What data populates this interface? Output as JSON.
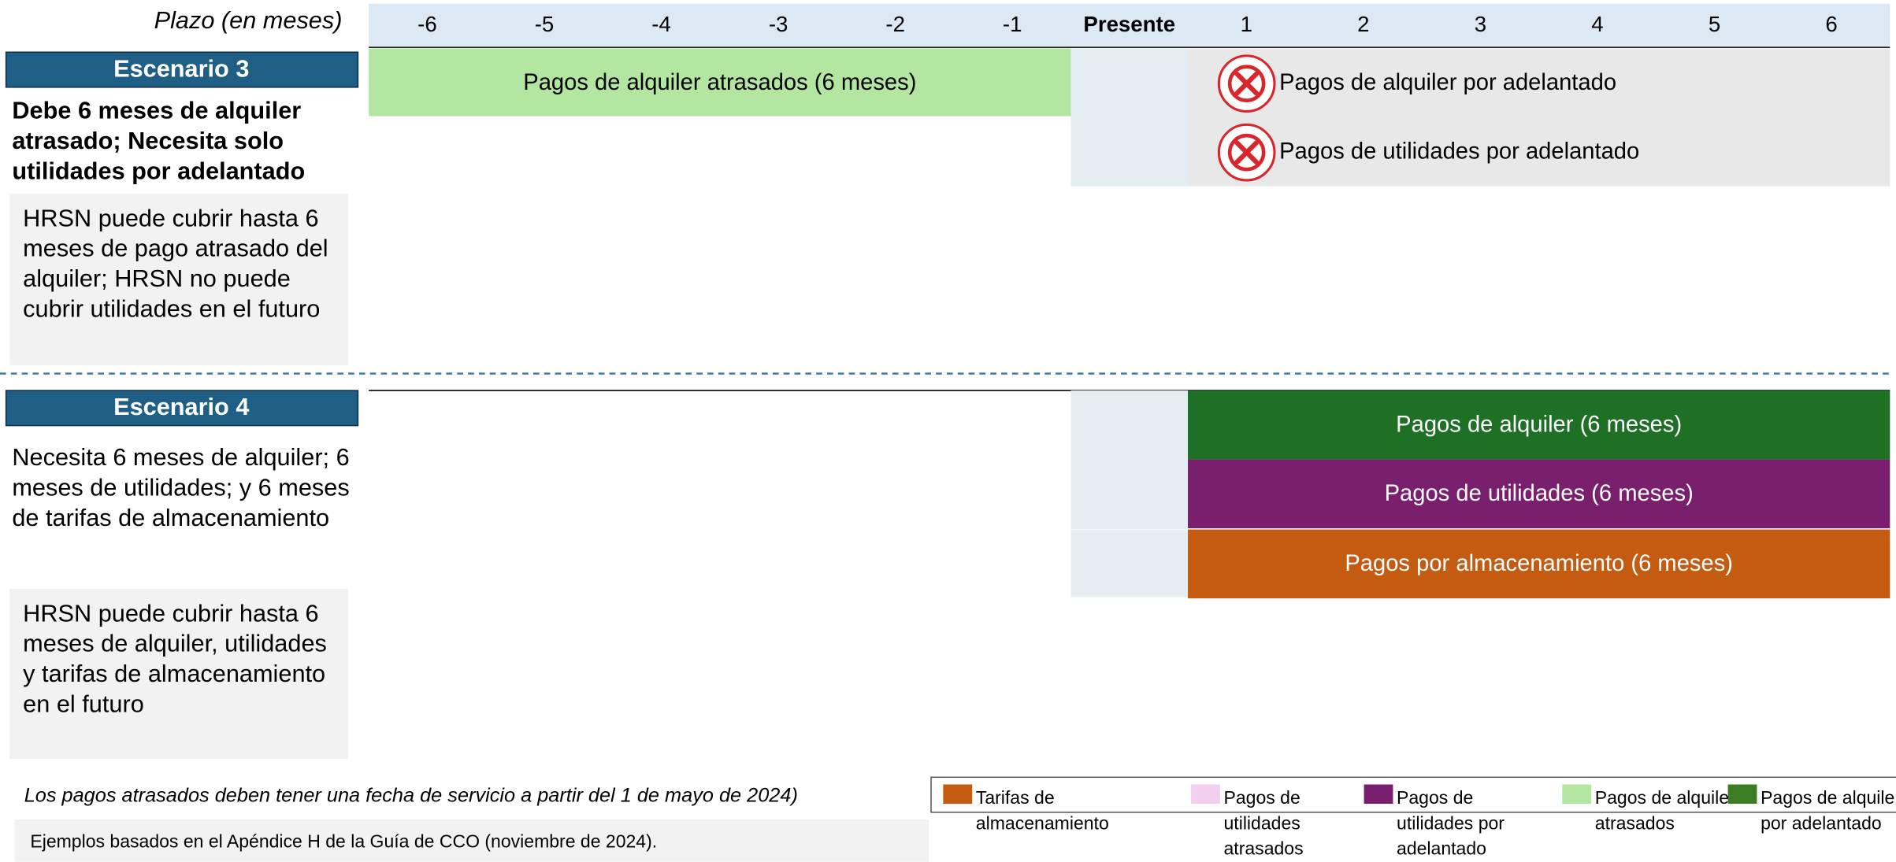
{
  "header": {
    "axis_label": "Plazo (en meses)",
    "columns": [
      "-6",
      "-5",
      "-4",
      "-3",
      "-2",
      "-1",
      "Presente",
      "1",
      "2",
      "3",
      "4",
      "5",
      "6"
    ]
  },
  "scenarios": [
    {
      "title": "Escenario 3",
      "description": "Debe 6 meses de alquiler atrasado; Necesita solo utilidades por adelantado",
      "note": "HRSN puede cubrir hasta 6 meses de pago atrasado del alquiler; HRSN no puede cubrir utilidades en el futuro",
      "bars": [
        "Pagos de alquiler atrasados (6 meses)"
      ],
      "denied": [
        "Pagos de alquiler por adelantado",
        "Pagos de utilidades por adelantado"
      ]
    },
    {
      "title": "Escenario 4",
      "description": "Necesita 6 meses de alquiler; 6 meses de utilidades; y 6 meses de tarifas de almacenamiento",
      "note": "HRSN puede cubrir hasta 6 meses de alquiler, utilidades y tarifas de almacenamiento en el futuro",
      "bars": [
        "Pagos de alquiler (6 meses)",
        "Pagos de utilidades (6 meses)",
        "Pagos por almacenamiento (6 meses)"
      ],
      "denied": []
    }
  ],
  "footnote": "Los pagos atrasados deben tener una fecha de servicio a partir del 1 de mayo de 2024)",
  "source": "Ejemplos basados en el Apéndice H de la Guía de CCO (noviembre de 2024).",
  "legend": [
    {
      "label": "Tarifas de almacenamiento",
      "color": "#c55a11"
    },
    {
      "label": "Pagos de utilidades atrasados",
      "color": "#f2cfee"
    },
    {
      "label": "Pagos de utilidades por adelantado",
      "color": "#7a1f6e"
    },
    {
      "label": "Pagos de alquiler atrasados",
      "color": "#b3e6a1"
    },
    {
      "label": "Pagos de alquiler por adelantado",
      "color": "#3a7d22"
    }
  ]
}
